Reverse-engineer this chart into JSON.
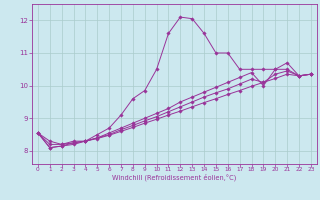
{
  "xlabel": "Windchill (Refroidissement éolien,°C)",
  "bg_color": "#cce8ef",
  "grid_color": "#aacccc",
  "line_color": "#993399",
  "spine_color": "#993399",
  "xlim": [
    -0.5,
    23.5
  ],
  "ylim": [
    7.6,
    12.5
  ],
  "xticks": [
    0,
    1,
    2,
    3,
    4,
    5,
    6,
    7,
    8,
    9,
    10,
    11,
    12,
    13,
    14,
    15,
    16,
    17,
    18,
    19,
    20,
    21,
    22,
    23
  ],
  "yticks": [
    8,
    9,
    10,
    11,
    12
  ],
  "series": [
    [
      8.55,
      8.3,
      8.2,
      8.3,
      8.3,
      8.5,
      8.7,
      9.1,
      9.6,
      9.85,
      10.5,
      11.6,
      12.1,
      12.05,
      11.6,
      11.0,
      11.0,
      10.5,
      10.5,
      10.5,
      10.5,
      10.7,
      10.3,
      10.35
    ],
    [
      8.55,
      8.2,
      8.2,
      8.25,
      8.3,
      8.4,
      8.55,
      8.7,
      8.85,
      9.0,
      9.15,
      9.3,
      9.5,
      9.65,
      9.8,
      9.95,
      10.1,
      10.25,
      10.4,
      10.0,
      10.5,
      10.5,
      10.3,
      10.35
    ],
    [
      8.55,
      8.1,
      8.15,
      8.25,
      8.3,
      8.4,
      8.5,
      8.65,
      8.78,
      8.92,
      9.05,
      9.2,
      9.35,
      9.5,
      9.65,
      9.78,
      9.9,
      10.05,
      10.2,
      10.1,
      10.35,
      10.45,
      10.3,
      10.35
    ],
    [
      8.55,
      8.1,
      8.15,
      8.2,
      8.3,
      8.38,
      8.48,
      8.6,
      8.72,
      8.85,
      8.97,
      9.1,
      9.22,
      9.35,
      9.48,
      9.6,
      9.73,
      9.85,
      9.98,
      10.1,
      10.22,
      10.35,
      10.3,
      10.35
    ]
  ]
}
